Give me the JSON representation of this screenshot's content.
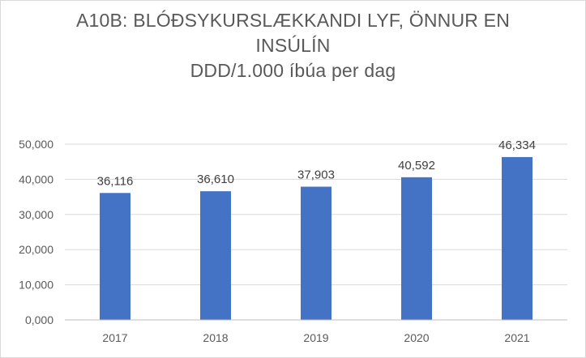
{
  "chart_data": {
    "type": "bar",
    "title_lines": [
      "A10B: BLÓÐSYKURSLÆKKANDI LYF, ÖNNUR EN",
      "INSÚLÍN",
      "DDD/1.000 íbúa per dag"
    ],
    "categories": [
      "2017",
      "2018",
      "2019",
      "2020",
      "2021"
    ],
    "values": [
      36.116,
      36.61,
      37.903,
      40.592,
      46.334
    ],
    "data_labels": [
      "36,116",
      "36,610",
      "37,903",
      "40,592",
      "46,334"
    ],
    "y_ticks": [
      0,
      10,
      20,
      30,
      40,
      50
    ],
    "y_tick_labels": [
      "0,000",
      "10,000",
      "20,000",
      "30,000",
      "40,000",
      "50,000"
    ],
    "ylim": [
      0,
      50
    ],
    "xlabel": "",
    "ylabel": "",
    "grid": true,
    "legend": "none",
    "bar_color": "#4472c4",
    "grid_color": "#d9d9d9"
  }
}
